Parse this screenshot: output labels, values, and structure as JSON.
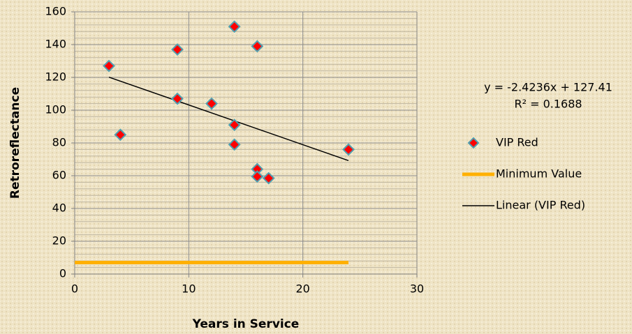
{
  "chart_data": {
    "type": "scatter",
    "x_label": "Years in Service",
    "y_label": "Retroreflectance",
    "series": [
      {
        "name": "VIP Red",
        "color": "#ff0000",
        "kind": "points",
        "x": [
          3,
          4,
          9,
          9,
          12,
          14,
          14,
          14,
          16,
          16,
          16,
          17,
          24
        ],
        "values": [
          127,
          85,
          137,
          107,
          104,
          151,
          91,
          79,
          139,
          64,
          59.5,
          58.5,
          76
        ]
      },
      {
        "name": "Minimum Value",
        "color": "#ffb000",
        "kind": "line",
        "x": [
          0,
          24
        ],
        "values": [
          7,
          7
        ]
      },
      {
        "name": "Linear (VIP Red)",
        "color": "#000000",
        "kind": "line",
        "x": [
          3,
          24
        ],
        "values": [
          120.14,
          69.24
        ]
      }
    ],
    "annotations": [
      "y = -2.4236x + 127.41",
      "R² = 0.1688"
    ],
    "xlim": [
      0,
      30
    ],
    "xticks": [
      0,
      10,
      20,
      30
    ],
    "ylim": [
      0,
      160
    ],
    "yticks": [
      0,
      20,
      40,
      60,
      80,
      100,
      120,
      140,
      160
    ],
    "grid": true,
    "legend": "right"
  }
}
